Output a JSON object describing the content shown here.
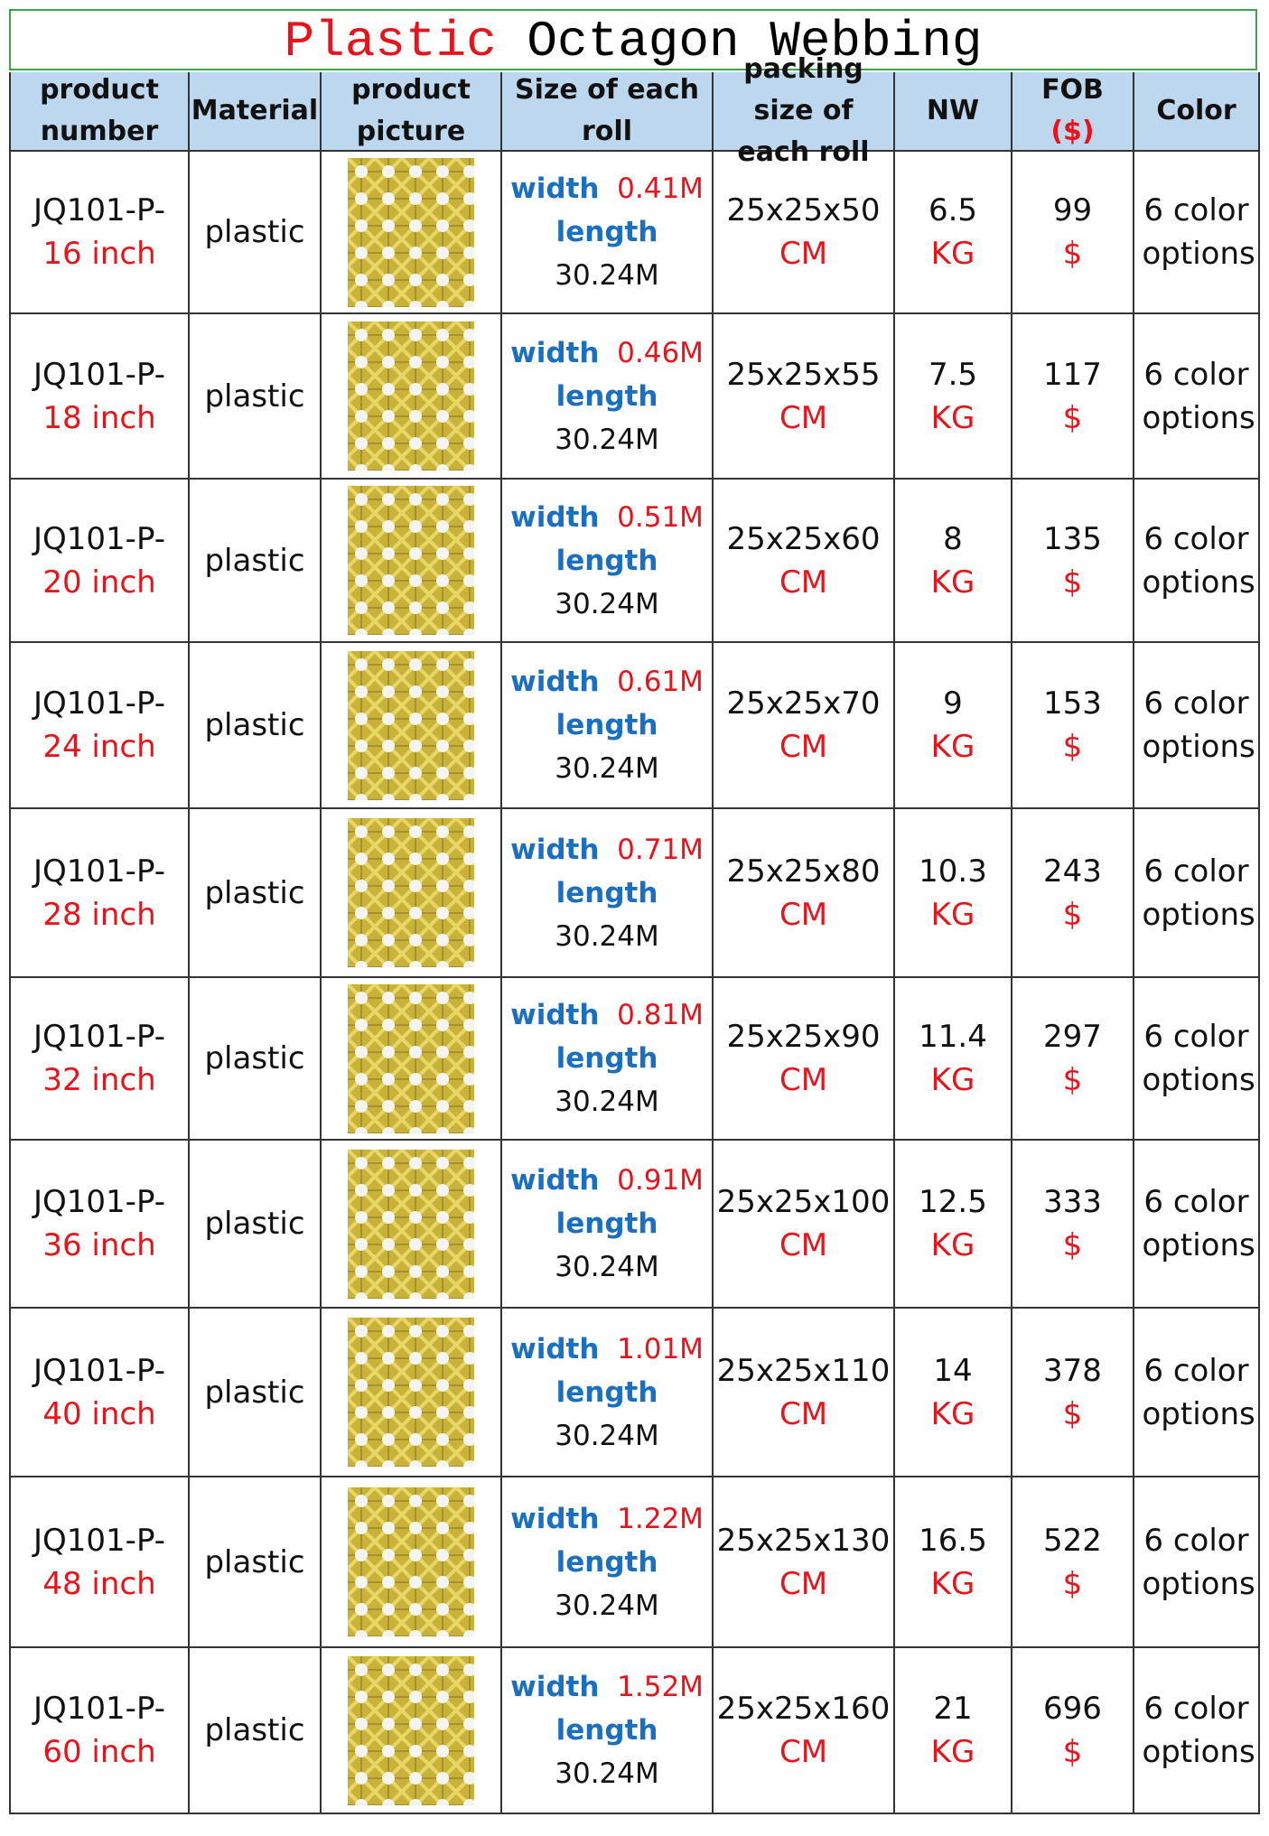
{
  "header": {
    "title_highlight": "Plastic",
    "title_rest": "Octagon Webbing"
  },
  "table": {
    "headers": [
      "product number",
      "Material",
      "product picture",
      "Size of each roll",
      "packing size of each roll",
      "NW",
      "FOB",
      "Color"
    ],
    "fob_currency": "($)",
    "rows": [
      {
        "code": "JQ101-P-",
        "size": "16 inch",
        "material": "plastic",
        "width_label": "width",
        "width": "0.41M",
        "length_label": "length",
        "length": "30.24M",
        "packing": "25x25x50",
        "packing_unit": "CM",
        "nw": 6.5,
        "nw_unit": "KG",
        "fob": 99,
        "fob_unit": "$",
        "color": "6 color options"
      },
      {
        "code": "JQ101-P-",
        "size": "18 inch",
        "material": "plastic",
        "width_label": "width",
        "width": "0.46M",
        "length_label": "length",
        "length": "30.24M",
        "packing": "25x25x55",
        "packing_unit": "CM",
        "nw": 7.5,
        "nw_unit": "KG",
        "fob": 117,
        "fob_unit": "$",
        "color": "6 color options"
      },
      {
        "code": "JQ101-P-",
        "size": "20 inch",
        "material": "plastic",
        "width_label": "width",
        "width": "0.51M",
        "length_label": "length",
        "length": "30.24M",
        "packing": "25x25x60",
        "packing_unit": "CM",
        "nw": 8,
        "nw_unit": "KG",
        "fob": 135,
        "fob_unit": "$",
        "color": "6 color options"
      },
      {
        "code": "JQ101-P-",
        "size": "24 inch",
        "material": "plastic",
        "width_label": "width",
        "width": "0.61M",
        "length_label": "length",
        "length": "30.24M",
        "packing": "25x25x70",
        "packing_unit": "CM",
        "nw": 9,
        "nw_unit": "KG",
        "fob": 153,
        "fob_unit": "$",
        "color": "6 color options"
      },
      {
        "code": "JQ101-P-",
        "size": "28 inch",
        "material": "plastic",
        "width_label": "width",
        "width": "0.71M",
        "length_label": "length",
        "length": "30.24M",
        "packing": "25x25x80",
        "packing_unit": "CM",
        "nw": 10.3,
        "nw_unit": "KG",
        "fob": 243,
        "fob_unit": "$",
        "color": "6 color options"
      },
      {
        "code": "JQ101-P-",
        "size": "32 inch",
        "material": "plastic",
        "width_label": "width",
        "width": "0.81M",
        "length_label": "length",
        "length": "30.24M",
        "packing": "25x25x90",
        "packing_unit": "CM",
        "nw": 11.4,
        "nw_unit": "KG",
        "fob": 297,
        "fob_unit": "$",
        "color": "6 color options"
      },
      {
        "code": "JQ101-P-",
        "size": "36 inch",
        "material": "plastic",
        "width_label": "width",
        "width": "0.91M",
        "length_label": "length",
        "length": "30.24M",
        "packing": "25x25x100",
        "packing_unit": "CM",
        "nw": 12.5,
        "nw_unit": "KG",
        "fob": 333,
        "fob_unit": "$",
        "color": "6 color options"
      },
      {
        "code": "JQ101-P-",
        "size": "40 inch",
        "material": "plastic",
        "width_label": "width",
        "width": "1.01M",
        "length_label": "length",
        "length": "30.24M",
        "packing": "25x25x110",
        "packing_unit": "CM",
        "nw": 14,
        "nw_unit": "KG",
        "fob": 378,
        "fob_unit": "$",
        "color": "6 color options"
      },
      {
        "code": "JQ101-P-",
        "size": "48 inch",
        "material": "plastic",
        "width_label": "width",
        "width": "1.22M",
        "length_label": "length",
        "length": "30.24M",
        "packing": "25x25x130",
        "packing_unit": "CM",
        "nw": 16.5,
        "nw_unit": "KG",
        "fob": 522,
        "fob_unit": "$",
        "color": "6 color options"
      },
      {
        "code": "JQ101-P-",
        "size": "60 inch",
        "material": "plastic",
        "width_label": "width",
        "width": "1.52M",
        "length_label": "length",
        "length": "30.24M",
        "packing": "25x25x160",
        "packing_unit": "CM",
        "nw": 21,
        "nw_unit": "KG",
        "fob": 696,
        "fob_unit": "$",
        "color": "6 color options"
      }
    ]
  }
}
